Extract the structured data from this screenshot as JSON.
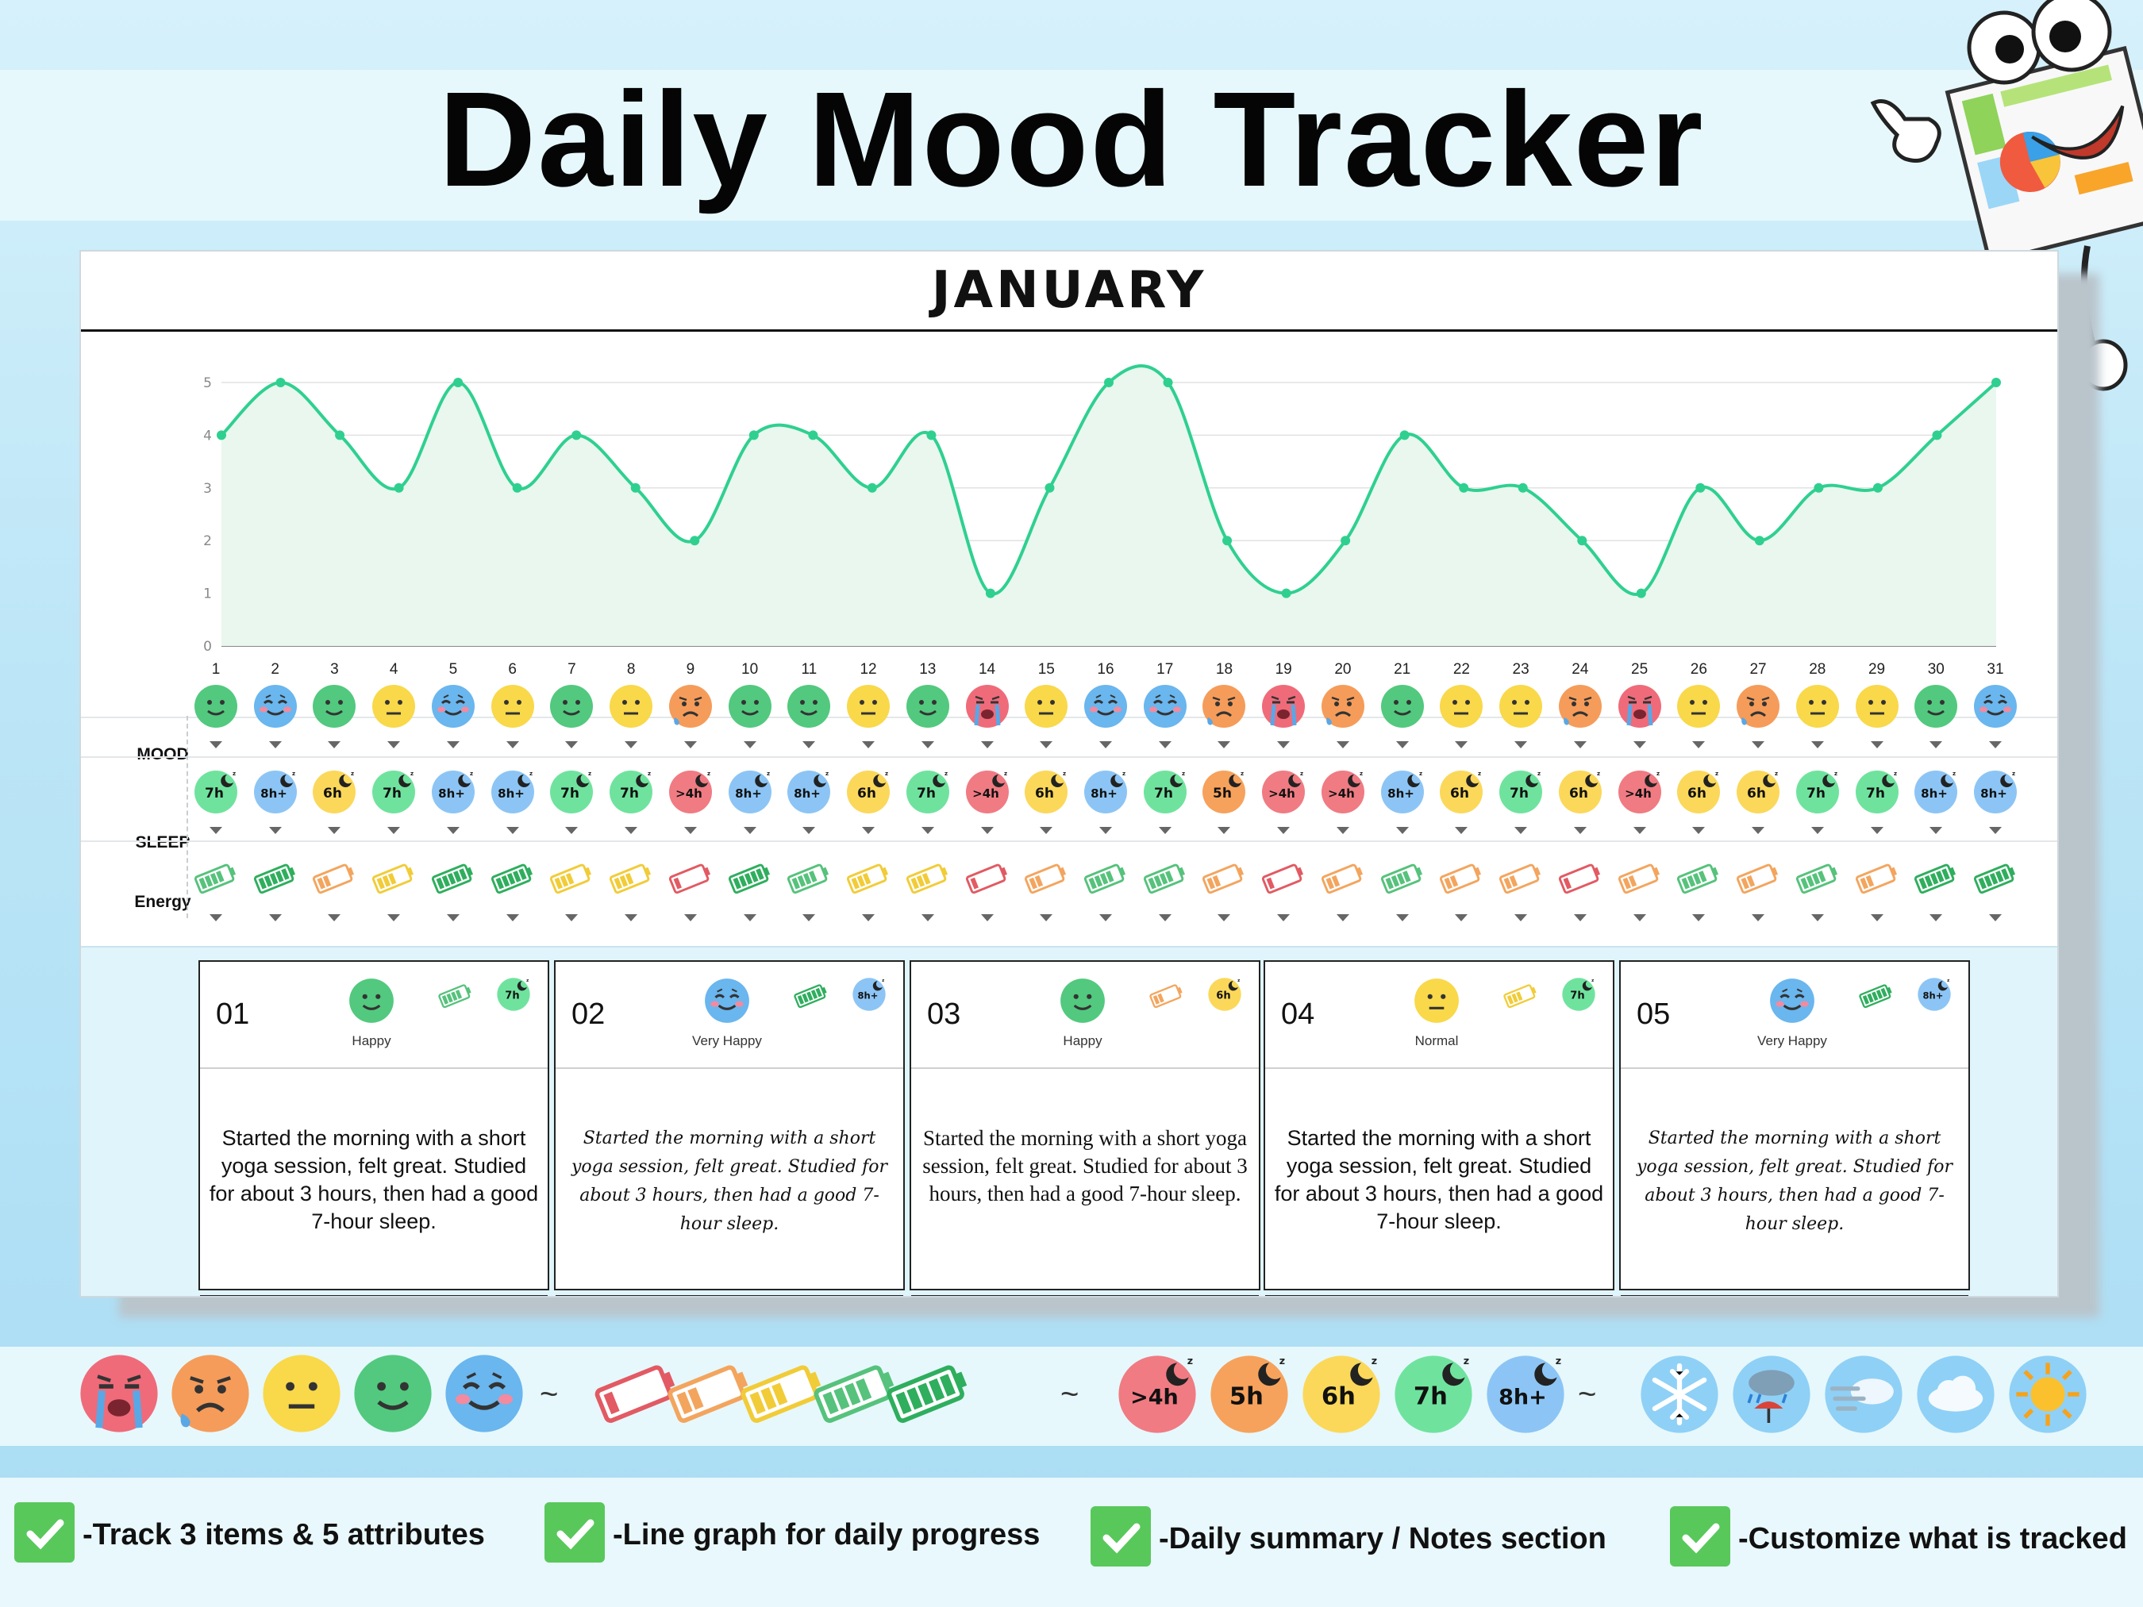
{
  "title": "Daily Mood Tracker",
  "month": "JANUARY",
  "row_labels": {
    "mood": "MOOD",
    "sleep": "SLEEP",
    "energy": "Energy"
  },
  "chart_data": {
    "type": "area",
    "x": [
      1,
      2,
      3,
      4,
      5,
      6,
      7,
      8,
      9,
      10,
      11,
      12,
      13,
      14,
      15,
      16,
      17,
      18,
      19,
      20,
      21,
      22,
      23,
      24,
      25,
      26,
      27,
      28,
      29,
      30,
      31
    ],
    "series": [
      {
        "values": [
          4,
          5,
          4,
          3,
          5,
          3,
          4,
          3,
          2,
          4,
          4,
          3,
          4,
          1,
          3,
          5,
          5,
          2,
          1,
          2,
          4,
          3,
          3,
          2,
          1,
          3,
          2,
          3,
          3,
          4,
          5
        ]
      }
    ],
    "ylim": [
      0,
      5
    ],
    "yticks": [
      "0",
      "1",
      "2",
      "3",
      "4",
      "5"
    ],
    "grid": true,
    "colors": {
      "line": "#2fd08f",
      "fill": "#e9f7ef"
    }
  },
  "days": [
    "1",
    "2",
    "3",
    "4",
    "5",
    "6",
    "7",
    "8",
    "9",
    "10",
    "11",
    "12",
    "13",
    "14",
    "15",
    "16",
    "17",
    "18",
    "19",
    "20",
    "21",
    "22",
    "23",
    "24",
    "25",
    "26",
    "27",
    "28",
    "29",
    "30",
    "31"
  ],
  "mood": [
    4,
    5,
    4,
    3,
    5,
    3,
    4,
    3,
    2,
    4,
    4,
    3,
    4,
    1,
    3,
    5,
    5,
    2,
    1,
    2,
    4,
    3,
    3,
    2,
    1,
    3,
    2,
    3,
    3,
    4,
    5
  ],
  "sleep": [
    "7h",
    "8h+",
    "6h",
    "7h",
    "8h+",
    "8h+",
    "7h",
    "7h",
    ">4h",
    "8h+",
    "8h+",
    "6h",
    "7h",
    ">4h",
    "6h",
    "8h+",
    "7h",
    "5h",
    ">4h",
    ">4h",
    "8h+",
    "6h",
    "7h",
    "6h",
    ">4h",
    "6h",
    "6h",
    "7h",
    "7h",
    "8h+",
    "8h+"
  ],
  "energy": [
    4,
    5,
    2,
    3,
    5,
    5,
    3,
    3,
    1,
    5,
    4,
    3,
    3,
    1,
    2,
    4,
    4,
    2,
    1,
    2,
    4,
    2,
    2,
    1,
    2,
    4,
    2,
    4,
    2,
    5,
    5
  ],
  "colors": {
    "mood": {
      "1": "#ef6b7a",
      "2": "#f59c5a",
      "3": "#f9d84a",
      "4": "#52c97e",
      "5": "#6ab6ee"
    },
    "sleep": {
      ">4h": "#f07b83",
      "5h": "#f6a25c",
      "6h": "#fbd85a",
      "7h": "#6fe39e",
      "8h+": "#8cc5f5"
    },
    "energy": {
      "1": "#e25a63",
      "2": "#f3a55e",
      "3": "#f1cc38",
      "4": "#56c27c",
      "5": "#2fae5e"
    }
  },
  "notes": [
    {
      "num": "01",
      "mood_label": "Happy",
      "mood": 4,
      "energy": 4,
      "sleep": "7h",
      "text": "Started the morning with a short yoga session, felt great. Studied for about 3 hours, then had a good 7-hour sleep.",
      "style": "sans"
    },
    {
      "num": "02",
      "mood_label": "Very Happy",
      "mood": 5,
      "energy": 5,
      "sleep": "8h+",
      "text": "Started the morning with a short yoga session, felt great. Studied for about 3 hours, then had a good 7-hour sleep.",
      "style": "script"
    },
    {
      "num": "03",
      "mood_label": "Happy",
      "mood": 4,
      "energy": 2,
      "sleep": "6h",
      "text": "Started the morning with a short yoga session, felt great. Studied for about 3 hours, then had a good 7-hour sleep.",
      "style": "serif"
    },
    {
      "num": "04",
      "mood_label": "Normal",
      "mood": 3,
      "energy": 3,
      "sleep": "7h",
      "text": "Started the morning with a short yoga session, felt great. Studied for about 3 hours, then had a good 7-hour sleep.",
      "style": "sans"
    },
    {
      "num": "05",
      "mood_label": "Very Happy",
      "mood": 5,
      "energy": 5,
      "sleep": "8h+",
      "text": "Started the morning with a short yoga session, felt great. Studied for about 3 hours, then had a good 7-hour sleep.",
      "style": "script"
    }
  ],
  "legend": {
    "moods": [
      1,
      2,
      3,
      4,
      5
    ],
    "energies": [
      1,
      2,
      3,
      4,
      5
    ],
    "sleeps": [
      ">4h",
      "5h",
      "6h",
      "7h",
      "8h+"
    ],
    "weather": [
      "snowflake-icon",
      "rain-umbrella-icon",
      "wind-cloud-icon",
      "cloud-icon",
      "sun-icon"
    ]
  },
  "features": [
    "-Track 3 items & 5 attributes",
    "-Line graph for daily progress",
    "-Daily summary / Notes section",
    "-Customize what is tracked"
  ]
}
